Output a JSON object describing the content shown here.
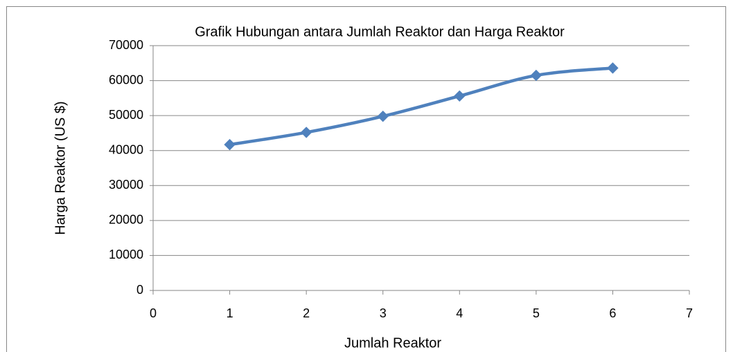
{
  "chart_data": {
    "type": "line",
    "title": "Grafik Hubungan antara Jumlah Reaktor dan Harga Reaktor",
    "x_label": "Jumlah Reaktor",
    "y_label": "Harga Reaktor (US $)",
    "x": [
      1,
      2,
      3,
      4,
      5,
      6
    ],
    "values": [
      41700,
      45200,
      49800,
      55600,
      61500,
      63600
    ],
    "color": "#4f81bd",
    "smooth": true,
    "marker": "diamond",
    "xlim": [
      0,
      7
    ],
    "xticks": [
      0,
      1,
      2,
      3,
      4,
      5,
      6,
      7
    ],
    "ylim": [
      0,
      70000
    ],
    "yticks": [
      0,
      10000,
      20000,
      30000,
      40000,
      50000,
      60000,
      70000
    ],
    "grid": true
  }
}
